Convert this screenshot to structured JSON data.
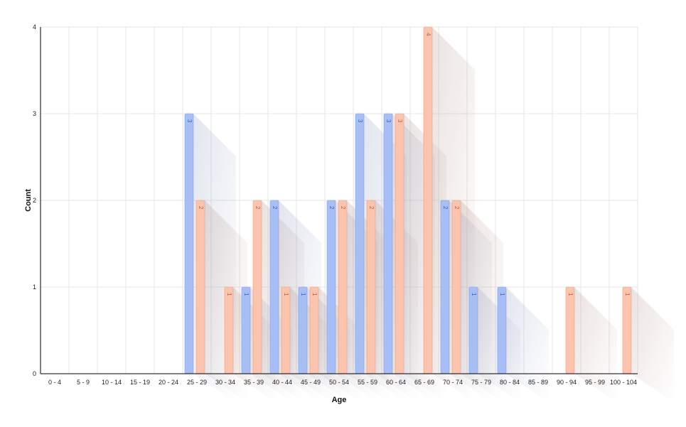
{
  "chart_data": {
    "type": "bar",
    "xlabel": "Age",
    "ylabel": "Count",
    "ylim": [
      0,
      4
    ],
    "yticks": [
      0,
      1,
      2,
      3,
      4
    ],
    "grid": true,
    "categories": [
      "0 - 4",
      "5 - 9",
      "10 - 14",
      "15 - 19",
      "20 - 24",
      "25 - 29",
      "30 - 34",
      "35 - 39",
      "40 - 44",
      "45 - 49",
      "50 - 54",
      "55 - 59",
      "60 - 64",
      "65 - 69",
      "70 - 74",
      "75 - 79",
      "80 - 84",
      "85 - 89",
      "90 - 94",
      "95 - 99",
      "100 - 104"
    ],
    "series": [
      {
        "values": [
          0,
          0,
          0,
          0,
          0,
          3,
          0,
          1,
          2,
          1,
          2,
          3,
          3,
          0,
          2,
          1,
          1,
          0,
          0,
          0,
          0
        ]
      },
      {
        "values": [
          0,
          0,
          0,
          0,
          0,
          2,
          1,
          2,
          1,
          1,
          2,
          2,
          3,
          4,
          2,
          0,
          0,
          0,
          1,
          0,
          1
        ]
      }
    ]
  },
  "colors": {
    "series": [
      "#a8bff5",
      "#fbc4ae"
    ],
    "series_border": [
      "#7f9de8",
      "#f09a7a"
    ],
    "series_text": [
      "#3f5fae",
      "#b85e3c"
    ],
    "grid": "#e6e6e6",
    "axis": "#000000"
  }
}
